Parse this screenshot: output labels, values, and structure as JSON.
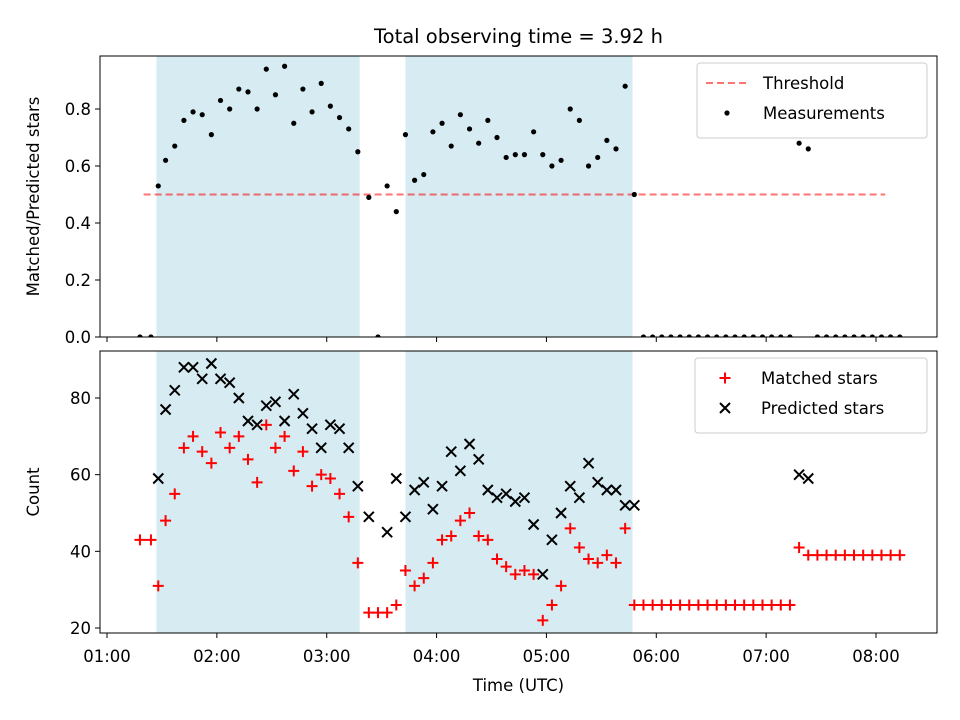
{
  "chart_data": [
    {
      "type": "scatter",
      "title": "Total observing time = 3.92 h",
      "xlabel": "",
      "ylabel": "Matched/Predicted stars",
      "xlim": [
        "01:00",
        "08:30"
      ],
      "ylim": [
        0,
        1.0
      ],
      "yticks": [
        "0.0",
        "0.2",
        "0.4",
        "0.6",
        "0.8"
      ],
      "grid": false,
      "legend_position": "top-right",
      "shaded_intervals": [
        [
          "01:27",
          "03:18"
        ],
        [
          "03:43",
          "05:47"
        ]
      ],
      "threshold": {
        "name": "Threshold",
        "value": 0.5,
        "x_range": [
          "01:20",
          "08:05"
        ],
        "color": "#ff0000"
      },
      "series": [
        {
          "name": "Measurements",
          "color": "#000000",
          "x": [
            "01:18",
            "01:24",
            "01:28",
            "01:32",
            "01:37",
            "01:42",
            "01:47",
            "01:52",
            "01:57",
            "02:02",
            "02:07",
            "02:12",
            "02:17",
            "02:22",
            "02:27",
            "02:32",
            "02:37",
            "02:42",
            "02:47",
            "02:52",
            "02:57",
            "03:02",
            "03:07",
            "03:12",
            "03:17",
            "03:23",
            "03:28",
            "03:33",
            "03:38",
            "03:43",
            "03:48",
            "03:53",
            "03:58",
            "04:03",
            "04:08",
            "04:13",
            "04:18",
            "04:23",
            "04:28",
            "04:33",
            "04:38",
            "04:43",
            "04:48",
            "04:53",
            "04:58",
            "05:03",
            "05:08",
            "05:13",
            "05:18",
            "05:23",
            "05:28",
            "05:33",
            "05:38",
            "05:43",
            "05:48",
            "05:53",
            "05:58",
            "06:03",
            "06:08",
            "06:13",
            "06:18",
            "06:23",
            "06:28",
            "06:33",
            "06:38",
            "06:43",
            "06:48",
            "06:53",
            "06:58",
            "07:03",
            "07:08",
            "07:13",
            "07:18",
            "07:23",
            "07:28",
            "07:33",
            "07:38",
            "07:43",
            "07:48",
            "07:53",
            "07:58",
            "08:03",
            "08:08",
            "08:13"
          ],
          "y": [
            0.0,
            0.0,
            0.53,
            0.62,
            0.67,
            0.76,
            0.79,
            0.78,
            0.71,
            0.83,
            0.8,
            0.87,
            0.86,
            0.8,
            0.94,
            0.85,
            0.95,
            0.75,
            0.87,
            0.79,
            0.89,
            0.81,
            0.77,
            0.73,
            0.65,
            0.49,
            0.0,
            0.53,
            0.44,
            0.71,
            0.55,
            0.57,
            0.72,
            0.75,
            0.67,
            0.78,
            0.73,
            0.68,
            0.76,
            0.7,
            0.63,
            0.64,
            0.64,
            0.72,
            0.64,
            0.6,
            0.62,
            0.8,
            0.76,
            0.6,
            0.63,
            0.69,
            0.66,
            0.88,
            0.5,
            0.0,
            0.0,
            0.0,
            0.0,
            0.0,
            0.0,
            0.0,
            0.0,
            0.0,
            0.0,
            0.0,
            0.0,
            0.0,
            0.0,
            0.0,
            0.0,
            0.0,
            0.68,
            0.66,
            0.0,
            0.0,
            0.0,
            0.0,
            0.0,
            0.0,
            0.0,
            0.0,
            0.0,
            0.0
          ]
        }
      ]
    },
    {
      "type": "scatter",
      "title": "",
      "xlabel": "Time (UTC)",
      "ylabel": "Count",
      "xlim": [
        "01:00",
        "08:30"
      ],
      "ylim": [
        19,
        93
      ],
      "yticks": [
        "20",
        "40",
        "60",
        "80"
      ],
      "xticks": [
        "01:00",
        "02:00",
        "03:00",
        "04:00",
        "05:00",
        "06:00",
        "07:00",
        "08:00"
      ],
      "grid": false,
      "legend_position": "top-right",
      "shaded_intervals": [
        [
          "01:27",
          "03:18"
        ],
        [
          "03:43",
          "05:47"
        ]
      ],
      "series": [
        {
          "name": "Matched stars",
          "marker": "+",
          "color": "#ff0000",
          "x": [
            "01:18",
            "01:24",
            "01:28",
            "01:32",
            "01:37",
            "01:42",
            "01:47",
            "01:52",
            "01:57",
            "02:02",
            "02:07",
            "02:12",
            "02:17",
            "02:22",
            "02:27",
            "02:32",
            "02:37",
            "02:42",
            "02:47",
            "02:52",
            "02:57",
            "03:02",
            "03:07",
            "03:12",
            "03:17",
            "03:23",
            "03:28",
            "03:33",
            "03:38",
            "03:43",
            "03:48",
            "03:53",
            "03:58",
            "04:03",
            "04:08",
            "04:13",
            "04:18",
            "04:23",
            "04:28",
            "04:33",
            "04:38",
            "04:43",
            "04:48",
            "04:53",
            "04:58",
            "05:03",
            "05:08",
            "05:13",
            "05:18",
            "05:23",
            "05:28",
            "05:33",
            "05:38",
            "05:43",
            "05:48",
            "05:53",
            "05:58",
            "06:03",
            "06:08",
            "06:13",
            "06:18",
            "06:23",
            "06:28",
            "06:33",
            "06:38",
            "06:43",
            "06:48",
            "06:53",
            "06:58",
            "07:03",
            "07:08",
            "07:13",
            "07:18",
            "07:23",
            "07:28",
            "07:33",
            "07:38",
            "07:43",
            "07:48",
            "07:53",
            "07:58",
            "08:03",
            "08:08",
            "08:13"
          ],
          "y": [
            43,
            43,
            31,
            48,
            55,
            67,
            70,
            66,
            63,
            71,
            67,
            70,
            64,
            58,
            73,
            67,
            70,
            61,
            66,
            57,
            60,
            59,
            55,
            49,
            37,
            24,
            24,
            24,
            26,
            35,
            31,
            33,
            37,
            43,
            44,
            48,
            50,
            44,
            43,
            38,
            36,
            34,
            35,
            34,
            22,
            26,
            31,
            46,
            41,
            38,
            37,
            39,
            37,
            46,
            26,
            26,
            26,
            26,
            26,
            26,
            26,
            26,
            26,
            26,
            26,
            26,
            26,
            26,
            26,
            26,
            26,
            26,
            41,
            39,
            39,
            39,
            39,
            39,
            39,
            39,
            39,
            39,
            39,
            39
          ]
        },
        {
          "name": "Predicted stars",
          "marker": "x",
          "color": "#000000",
          "x": [
            "01:28",
            "01:32",
            "01:37",
            "01:42",
            "01:47",
            "01:52",
            "01:57",
            "02:02",
            "02:07",
            "02:12",
            "02:17",
            "02:22",
            "02:27",
            "02:32",
            "02:37",
            "02:42",
            "02:47",
            "02:52",
            "02:57",
            "03:02",
            "03:07",
            "03:12",
            "03:17",
            "03:23",
            "03:33",
            "03:38",
            "03:43",
            "03:48",
            "03:53",
            "03:58",
            "04:03",
            "04:08",
            "04:13",
            "04:18",
            "04:23",
            "04:28",
            "04:33",
            "04:38",
            "04:43",
            "04:48",
            "04:53",
            "04:58",
            "05:03",
            "05:08",
            "05:13",
            "05:18",
            "05:23",
            "05:28",
            "05:33",
            "05:38",
            "05:43",
            "05:48",
            "07:18",
            "07:23"
          ],
          "y": [
            59,
            77,
            82,
            88,
            88,
            85,
            89,
            85,
            84,
            80,
            74,
            73,
            78,
            79,
            74,
            81,
            76,
            72,
            67,
            73,
            72,
            67,
            57,
            49,
            45,
            59,
            49,
            56,
            58,
            51,
            57,
            66,
            61,
            68,
            64,
            56,
            54,
            55,
            53,
            54,
            47,
            34,
            43,
            50,
            57,
            54,
            63,
            58,
            56,
            56,
            52,
            52,
            60,
            59
          ]
        }
      ]
    }
  ]
}
